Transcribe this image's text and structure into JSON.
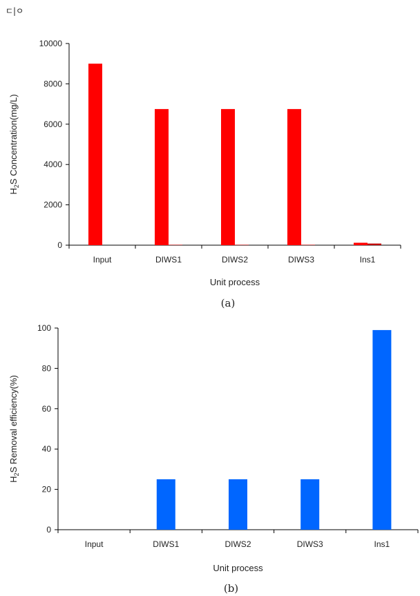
{
  "corner_mark": "ㄷ|ㅇ",
  "chart_data": [
    {
      "type": "bar",
      "caption": "(a)",
      "categories": [
        "Input",
        "DIWS1",
        "DIWS2",
        "DIWS3",
        "Ins1"
      ],
      "series": [
        {
          "values": [
            9000,
            6750,
            6750,
            6750,
            120
          ],
          "color": "#ff0000"
        },
        {
          "values": [
            0,
            20,
            20,
            20,
            80
          ],
          "color": "#c00000"
        }
      ],
      "ylabel_parts": [
        "H",
        "2",
        "S Concentration(mg/L)"
      ],
      "xlabel": "Unit process",
      "ylim": [
        0,
        10000
      ],
      "yticks": [
        0,
        2000,
        4000,
        6000,
        8000,
        10000
      ],
      "grid": false
    },
    {
      "type": "bar",
      "caption": "(b)",
      "categories": [
        "Input",
        "DIWS1",
        "DIWS2",
        "DIWS3",
        "Ins1"
      ],
      "series": [
        {
          "values": [
            0,
            25,
            25,
            25,
            99
          ],
          "color": "#0066ff"
        }
      ],
      "ylabel_parts": [
        "H",
        "2",
        "S Removal efficiency(%)"
      ],
      "xlabel": "Unit process",
      "ylim": [
        0,
        100
      ],
      "yticks": [
        0,
        20,
        40,
        60,
        80,
        100
      ],
      "grid": false
    }
  ]
}
